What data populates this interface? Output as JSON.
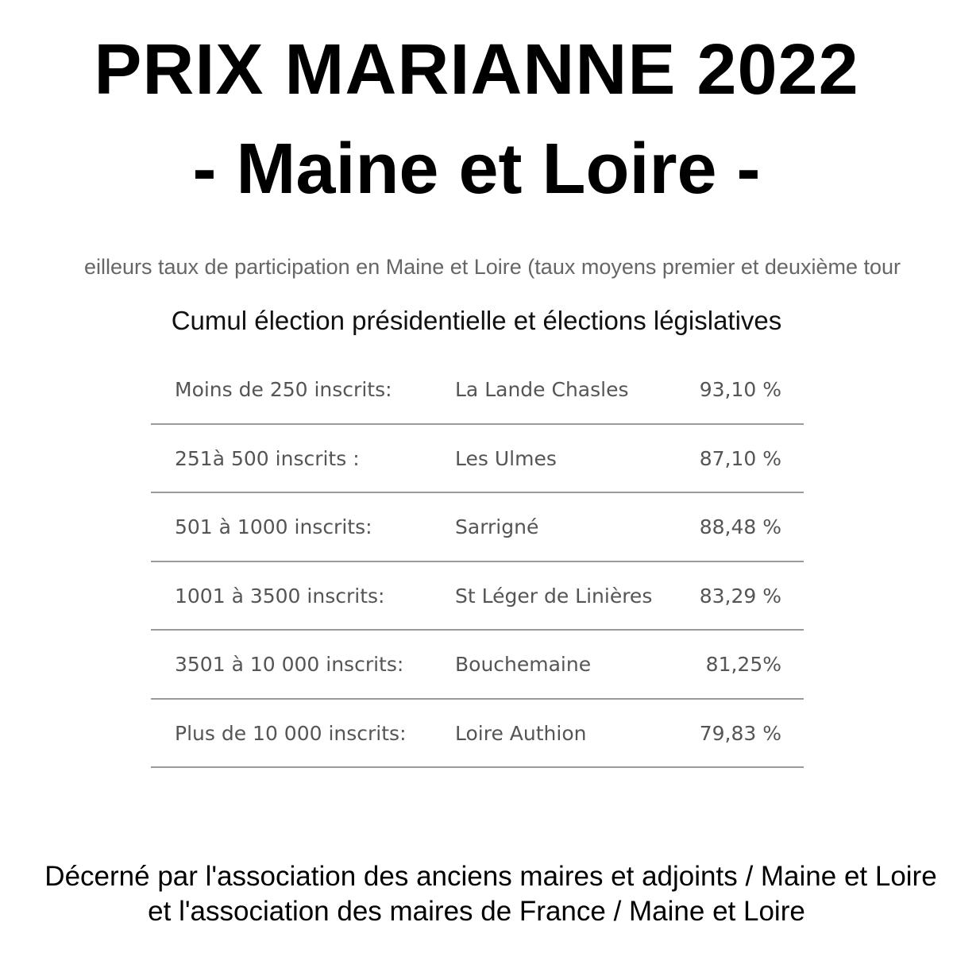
{
  "title": {
    "line1": "PRIX MARIANNE 2022",
    "line2": "- Maine et Loire -"
  },
  "intro": "eilleurs taux de participation en Maine et Loire (taux moyens premier et deuxième tour",
  "subtitle": "Cumul élection présidentielle et élections législatives",
  "table": {
    "rows": [
      {
        "category": "Moins de 250 inscrits:",
        "commune": "La Lande Chasles",
        "rate": "93,10 %"
      },
      {
        "category": "251à 500 inscrits :",
        "commune": "Les Ulmes",
        "rate": "87,10 %"
      },
      {
        "category": "501 à 1000 inscrits:",
        "commune": "Sarrigné",
        "rate": "88,48 %"
      },
      {
        "category": "1001 à 3500 inscrits:",
        "commune": "St Léger de Linières",
        "rate": "83,29 %"
      },
      {
        "category": "3501 à 10 000 inscrits:",
        "commune": "Bouchemaine",
        "rate": "81,25%"
      },
      {
        "category": "Plus de 10 000 inscrits:",
        "commune": "Loire Authion",
        "rate": "79,83 %"
      }
    ]
  },
  "footer": {
    "line1": "Décerné par l'association des anciens maires et adjoints / Maine et Loire",
    "line2": "et l'association des maires de France / Maine et Loire"
  }
}
